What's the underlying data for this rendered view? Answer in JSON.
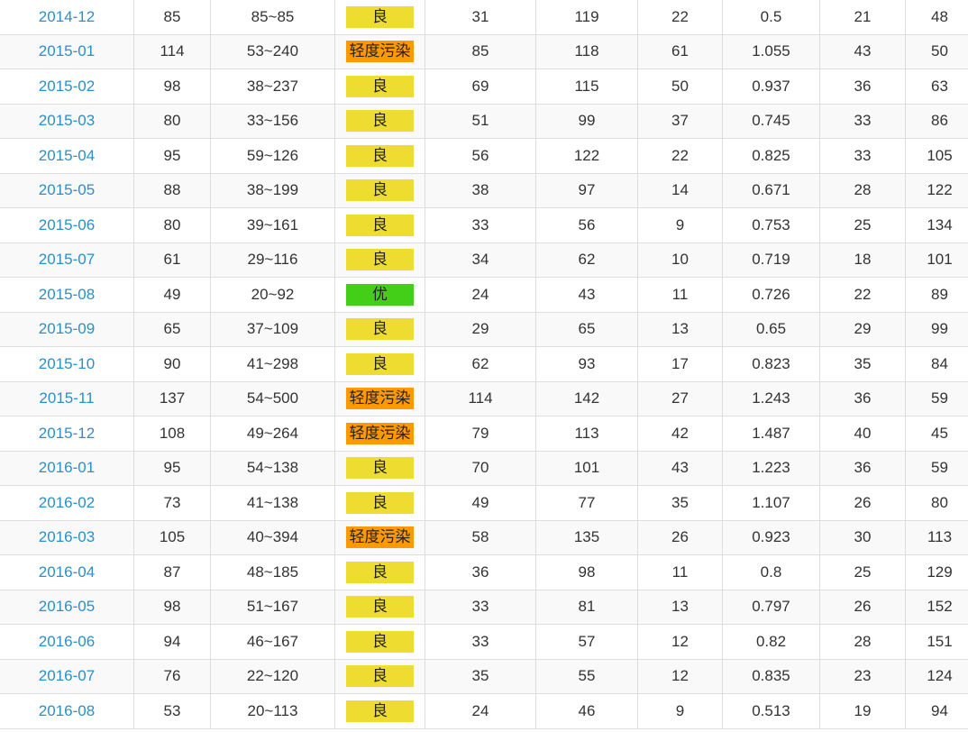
{
  "colors": {
    "link": "#2a8fcb",
    "level_colors": {
      "良": "#efdc31",
      "轻度污染": "#ff9900",
      "优": "#43ce17"
    }
  },
  "rows": [
    {
      "month": "2014-12",
      "aqi": "85",
      "range": "85~85",
      "level": "良",
      "pm25": "31",
      "pm10": "119",
      "so2": "22",
      "co": "0.5",
      "no2": "21",
      "o3": "48"
    },
    {
      "month": "2015-01",
      "aqi": "114",
      "range": "53~240",
      "level": "轻度污染",
      "pm25": "85",
      "pm10": "118",
      "so2": "61",
      "co": "1.055",
      "no2": "43",
      "o3": "50"
    },
    {
      "month": "2015-02",
      "aqi": "98",
      "range": "38~237",
      "level": "良",
      "pm25": "69",
      "pm10": "115",
      "so2": "50",
      "co": "0.937",
      "no2": "36",
      "o3": "63"
    },
    {
      "month": "2015-03",
      "aqi": "80",
      "range": "33~156",
      "level": "良",
      "pm25": "51",
      "pm10": "99",
      "so2": "37",
      "co": "0.745",
      "no2": "33",
      "o3": "86"
    },
    {
      "month": "2015-04",
      "aqi": "95",
      "range": "59~126",
      "level": "良",
      "pm25": "56",
      "pm10": "122",
      "so2": "22",
      "co": "0.825",
      "no2": "33",
      "o3": "105"
    },
    {
      "month": "2015-05",
      "aqi": "88",
      "range": "38~199",
      "level": "良",
      "pm25": "38",
      "pm10": "97",
      "so2": "14",
      "co": "0.671",
      "no2": "28",
      "o3": "122"
    },
    {
      "month": "2015-06",
      "aqi": "80",
      "range": "39~161",
      "level": "良",
      "pm25": "33",
      "pm10": "56",
      "so2": "9",
      "co": "0.753",
      "no2": "25",
      "o3": "134"
    },
    {
      "month": "2015-07",
      "aqi": "61",
      "range": "29~116",
      "level": "良",
      "pm25": "34",
      "pm10": "62",
      "so2": "10",
      "co": "0.719",
      "no2": "18",
      "o3": "101"
    },
    {
      "month": "2015-08",
      "aqi": "49",
      "range": "20~92",
      "level": "优",
      "pm25": "24",
      "pm10": "43",
      "so2": "11",
      "co": "0.726",
      "no2": "22",
      "o3": "89"
    },
    {
      "month": "2015-09",
      "aqi": "65",
      "range": "37~109",
      "level": "良",
      "pm25": "29",
      "pm10": "65",
      "so2": "13",
      "co": "0.65",
      "no2": "29",
      "o3": "99"
    },
    {
      "month": "2015-10",
      "aqi": "90",
      "range": "41~298",
      "level": "良",
      "pm25": "62",
      "pm10": "93",
      "so2": "17",
      "co": "0.823",
      "no2": "35",
      "o3": "84"
    },
    {
      "month": "2015-11",
      "aqi": "137",
      "range": "54~500",
      "level": "轻度污染",
      "pm25": "114",
      "pm10": "142",
      "so2": "27",
      "co": "1.243",
      "no2": "36",
      "o3": "59"
    },
    {
      "month": "2015-12",
      "aqi": "108",
      "range": "49~264",
      "level": "轻度污染",
      "pm25": "79",
      "pm10": "113",
      "so2": "42",
      "co": "1.487",
      "no2": "40",
      "o3": "45"
    },
    {
      "month": "2016-01",
      "aqi": "95",
      "range": "54~138",
      "level": "良",
      "pm25": "70",
      "pm10": "101",
      "so2": "43",
      "co": "1.223",
      "no2": "36",
      "o3": "59"
    },
    {
      "month": "2016-02",
      "aqi": "73",
      "range": "41~138",
      "level": "良",
      "pm25": "49",
      "pm10": "77",
      "so2": "35",
      "co": "1.107",
      "no2": "26",
      "o3": "80"
    },
    {
      "month": "2016-03",
      "aqi": "105",
      "range": "40~394",
      "level": "轻度污染",
      "pm25": "58",
      "pm10": "135",
      "so2": "26",
      "co": "0.923",
      "no2": "30",
      "o3": "113"
    },
    {
      "month": "2016-04",
      "aqi": "87",
      "range": "48~185",
      "level": "良",
      "pm25": "36",
      "pm10": "98",
      "so2": "11",
      "co": "0.8",
      "no2": "25",
      "o3": "129"
    },
    {
      "month": "2016-05",
      "aqi": "98",
      "range": "51~167",
      "level": "良",
      "pm25": "33",
      "pm10": "81",
      "so2": "13",
      "co": "0.797",
      "no2": "26",
      "o3": "152"
    },
    {
      "month": "2016-06",
      "aqi": "94",
      "range": "46~167",
      "level": "良",
      "pm25": "33",
      "pm10": "57",
      "so2": "12",
      "co": "0.82",
      "no2": "28",
      "o3": "151"
    },
    {
      "month": "2016-07",
      "aqi": "76",
      "range": "22~120",
      "level": "良",
      "pm25": "35",
      "pm10": "55",
      "so2": "12",
      "co": "0.835",
      "no2": "23",
      "o3": "124"
    },
    {
      "month": "2016-08",
      "aqi": "53",
      "range": "20~113",
      "level": "良",
      "pm25": "24",
      "pm10": "46",
      "so2": "9",
      "co": "0.513",
      "no2": "19",
      "o3": "94"
    }
  ]
}
